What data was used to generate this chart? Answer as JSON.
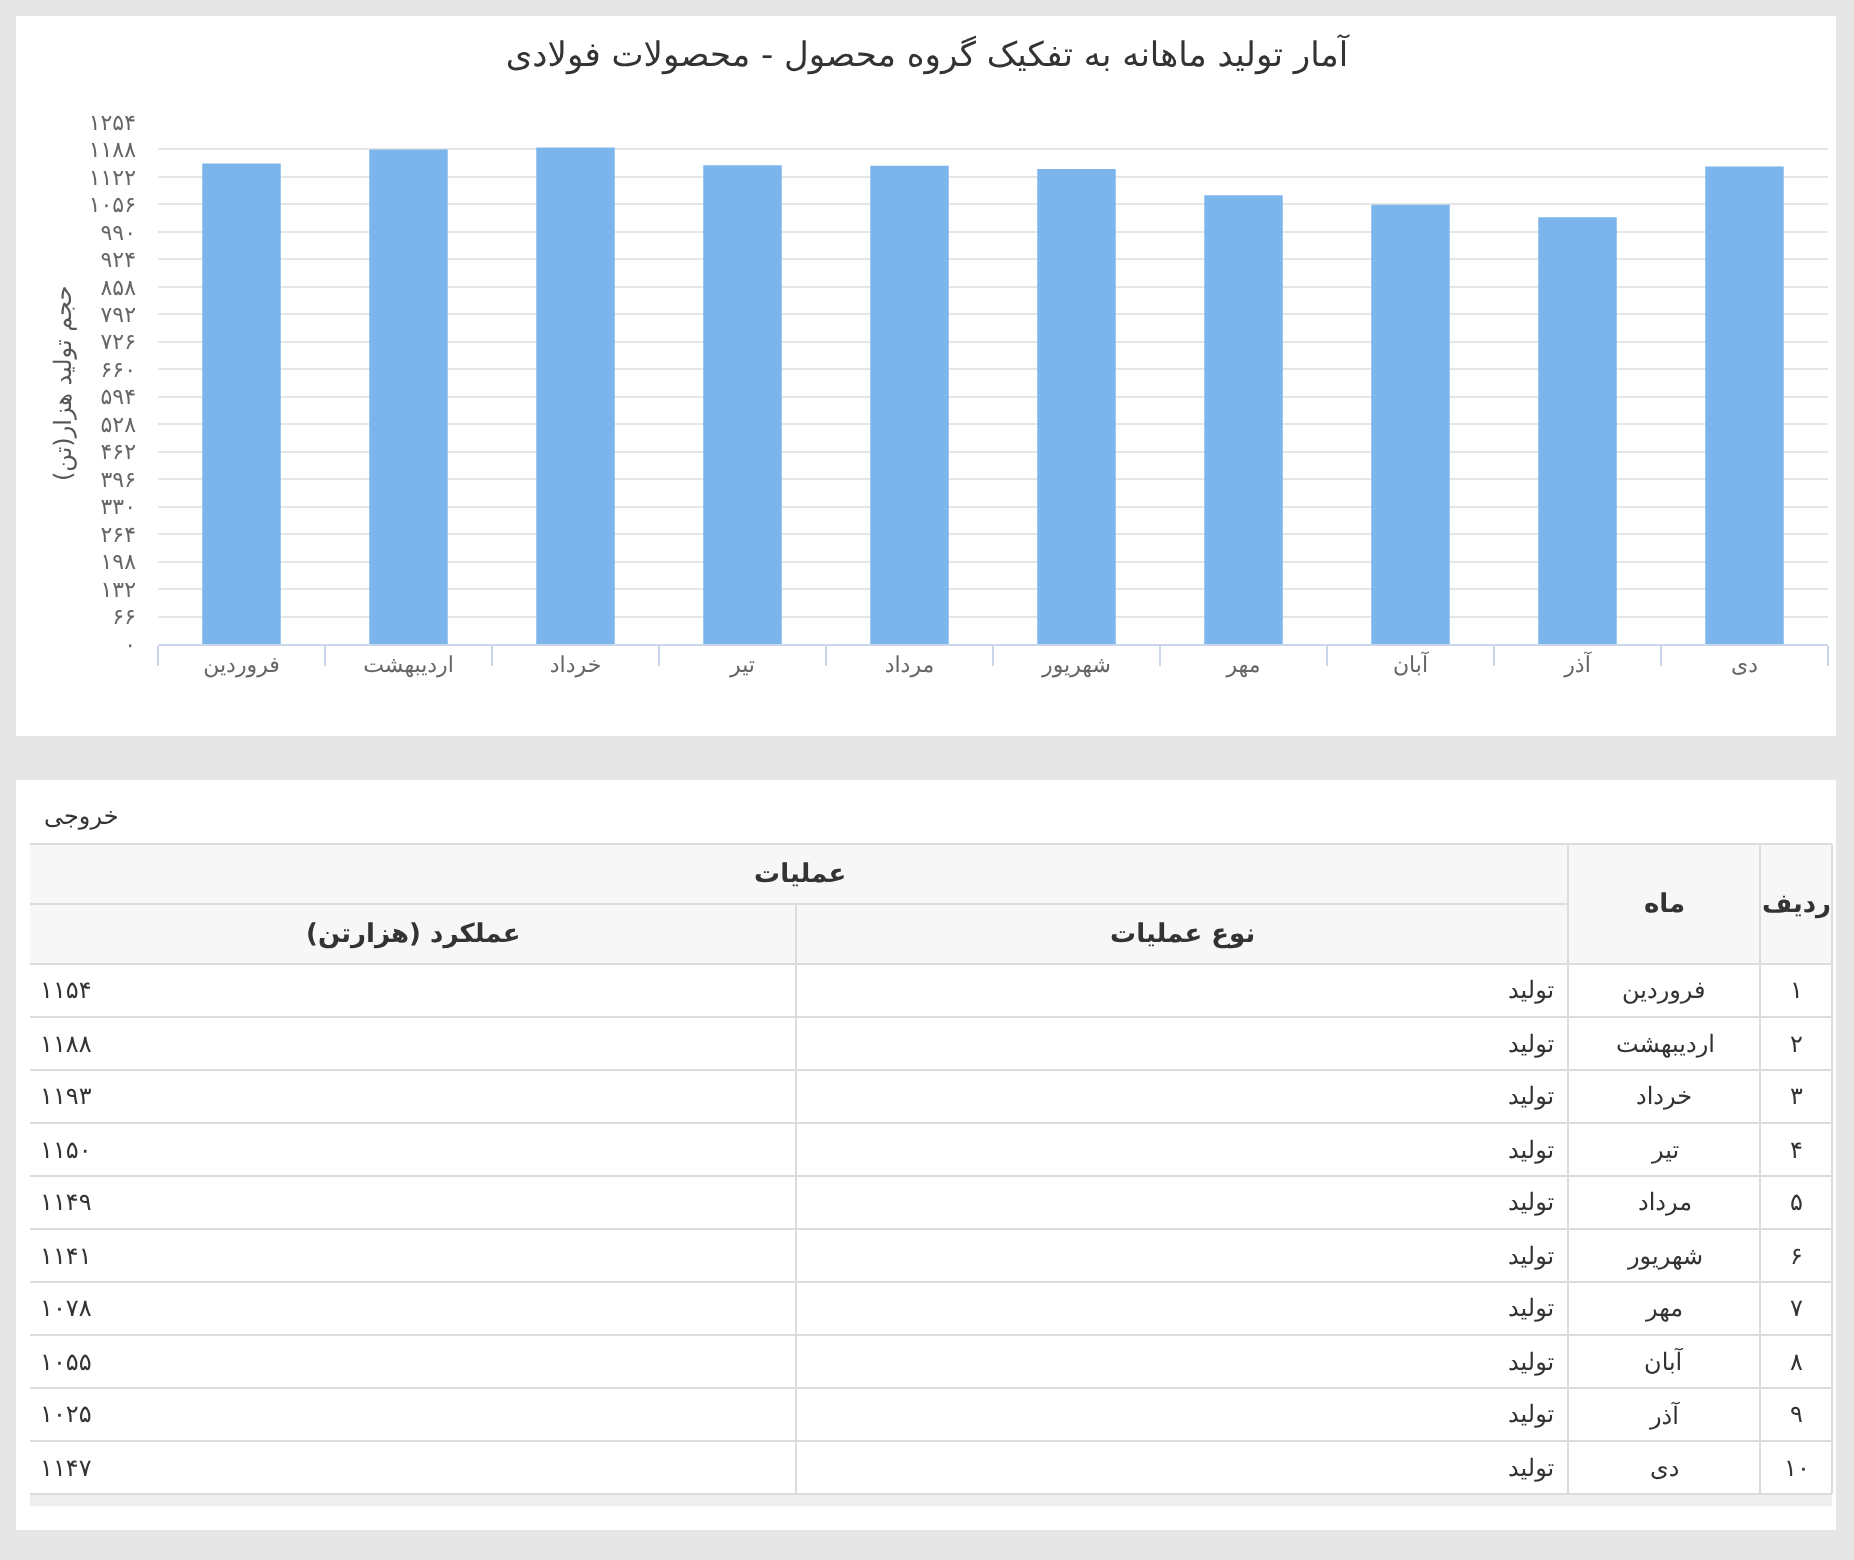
{
  "chart_data": {
    "type": "bar",
    "title": "آمار تولید ماهانه به تفکیک گروه محصول - محصولات فولادی",
    "ylabel": "حجم تولید هزار(تن)",
    "categories": [
      "فروردین",
      "اردیبهشت",
      "خرداد",
      "تیر",
      "مرداد",
      "شهریور",
      "مهر",
      "آبان",
      "آذر",
      "دی"
    ],
    "values": [
      1154,
      1188,
      1193,
      1150,
      1149,
      1141,
      1078,
      1055,
      1025,
      1147
    ],
    "color": "#7cb5ec",
    "ylim": [
      0,
      1254
    ],
    "yticks": [
      {
        "value": 0,
        "label": "۰"
      },
      {
        "value": 66,
        "label": "۶۶"
      },
      {
        "value": 132,
        "label": "۱۳۲"
      },
      {
        "value": 198,
        "label": "۱۹۸"
      },
      {
        "value": 264,
        "label": "۲۶۴"
      },
      {
        "value": 330,
        "label": "۳۳۰"
      },
      {
        "value": 396,
        "label": "۳۹۶"
      },
      {
        "value": 462,
        "label": "۴۶۲"
      },
      {
        "value": 528,
        "label": "۵۲۸"
      },
      {
        "value": 594,
        "label": "۵۹۴"
      },
      {
        "value": 660,
        "label": "۶۶۰"
      },
      {
        "value": 726,
        "label": "۷۲۶"
      },
      {
        "value": 792,
        "label": "۷۹۲"
      },
      {
        "value": 858,
        "label": "۸۵۸"
      },
      {
        "value": 924,
        "label": "۹۲۴"
      },
      {
        "value": 990,
        "label": "۹۹۰"
      },
      {
        "value": 1056,
        "label": "۱۰۵۶"
      },
      {
        "value": 1122,
        "label": "۱۱۲۲"
      },
      {
        "value": 1188,
        "label": "۱۱۸۸"
      },
      {
        "value": 1254,
        "label": "۱۲۵۴"
      }
    ],
    "grid": "y",
    "annotations": [
      "خروجی",
      "ردیف",
      "ماه",
      "عملیات",
      "نوع عملیات",
      "عملکرد (هزارتن)",
      "۱",
      "فروردین",
      "تولید",
      "۱۱۵۴",
      "۲",
      "اردیبهشت",
      "تولید",
      "۱۱۸۸",
      "۳",
      "خرداد",
      "تولید",
      "۱۱۹۳",
      "۴",
      "تیر",
      "تولید",
      "۱۱۵۰",
      "۵",
      "مرداد",
      "تولید",
      "۱۱۴۹",
      "۶",
      "شهریور",
      "تولید",
      "۱۱۴۱",
      "۷",
      "مهر",
      "تولید",
      "۱۰۷۸",
      "۸",
      "آبان",
      "تولید",
      "۱۰۵۵",
      "۹",
      "آذر",
      "تولید",
      "۱۰۲۵",
      "۱۰",
      "دی",
      "تولید",
      "۱۱۴۷"
    ]
  }
}
